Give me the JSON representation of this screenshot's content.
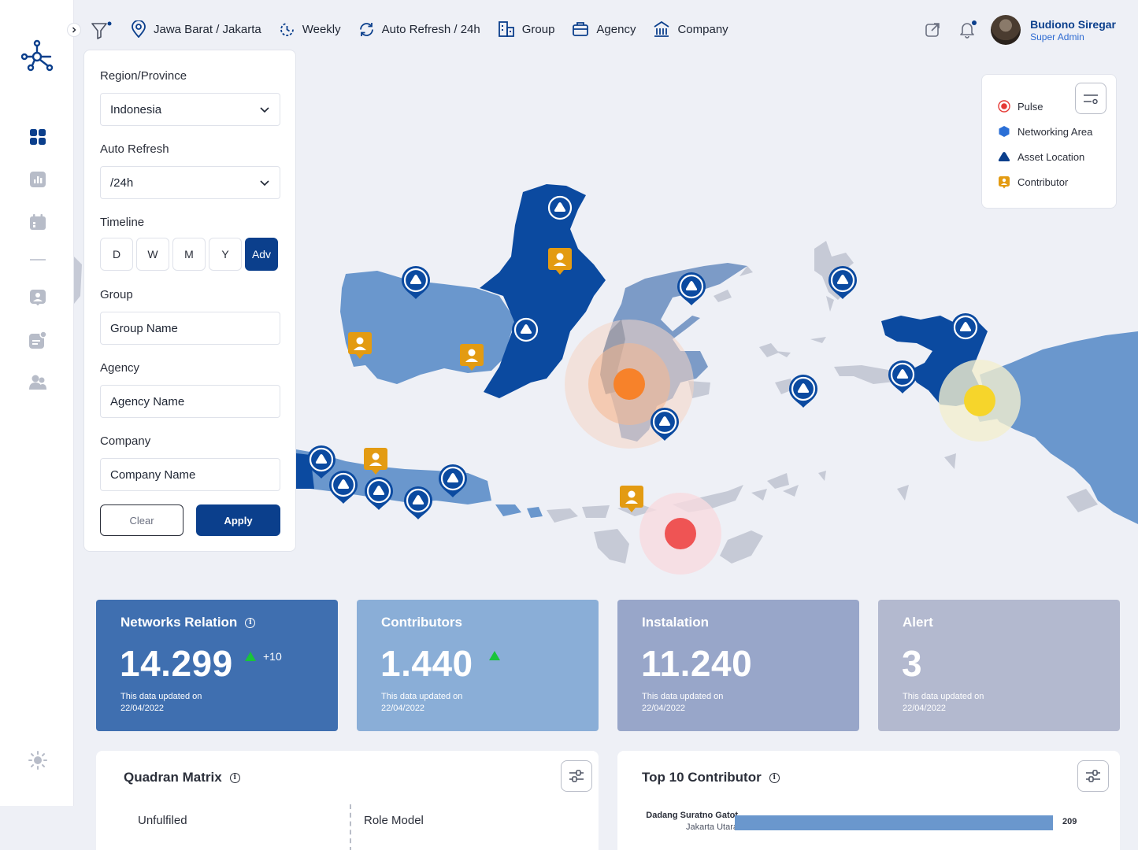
{
  "topbar": {
    "location": "Jawa Barat / Jakarta",
    "period": "Weekly",
    "refresh": "Auto Refresh / 24h",
    "group": "Group",
    "agency": "Agency",
    "company": "Company",
    "user": {
      "name": "Budiono Siregar",
      "role": "Super Admin"
    }
  },
  "filter": {
    "region_label": "Region/Province",
    "region_value": "Indonesia",
    "refresh_label": "Auto Refresh",
    "refresh_value": "/24h",
    "timeline_label": "Timeline",
    "timeline_options": [
      "D",
      "W",
      "M",
      "Y",
      "Adv"
    ],
    "timeline_selected": "Adv",
    "group_label": "Group",
    "group_placeholder": "Group Name",
    "agency_label": "Agency",
    "agency_placeholder": "Agency Name",
    "company_label": "Company",
    "company_placeholder": "Company Name",
    "clear_label": "Clear",
    "apply_label": "Apply"
  },
  "legend": {
    "items": [
      {
        "label": "Pulse",
        "color": "#e53935"
      },
      {
        "label": "Networking Area",
        "color": "#2b6fd6"
      },
      {
        "label": "Asset Location",
        "color": "#0b3f8c"
      },
      {
        "label": "Contributor",
        "color": "#e39b12"
      }
    ]
  },
  "cards": [
    {
      "title": "Networks Relation",
      "value": "14.299",
      "trend": "+10",
      "updated_label": "This data updated on",
      "updated_date": "22/04/2022",
      "color": "#3f6fb0"
    },
    {
      "title": "Contributors",
      "value": "1.440",
      "trend": "",
      "updated_label": "This data updated on",
      "updated_date": "22/04/2022",
      "color": "#8aaed7"
    },
    {
      "title": "Instalation",
      "value": "11.240",
      "updated_label": "This data updated on",
      "updated_date": "22/04/2022",
      "color": "#98a6c9"
    },
    {
      "title": "Alert",
      "value": "3",
      "updated_label": "This data updated on",
      "updated_date": "22/04/2022",
      "color": "#b3b9cf"
    }
  ],
  "quadrant": {
    "title": "Quadran Matrix",
    "top_left": "Unfulfiled",
    "top_right": "Role Model"
  },
  "top_contributor": {
    "title": "Top 10 Contributor",
    "rows": [
      {
        "name": "Dadang Suratno Gatot",
        "location": "Jakarta Utara",
        "value": 209
      }
    ],
    "max": 209
  }
}
